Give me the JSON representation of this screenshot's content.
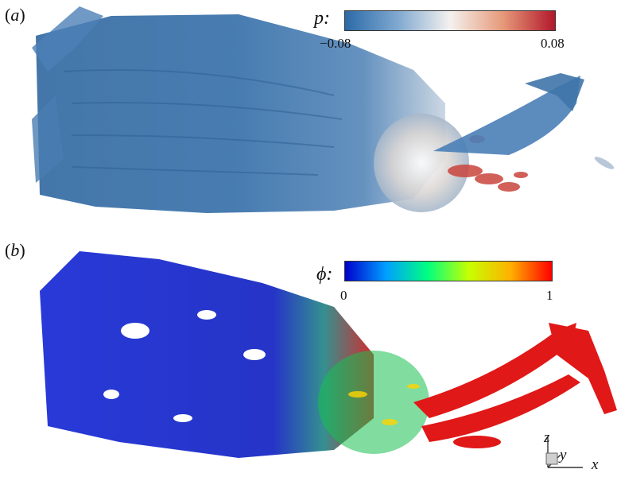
{
  "panels": [
    {
      "id": "a",
      "label": "a",
      "colorbar": {
        "variable": "p",
        "min_label": "−0.08",
        "max_label": "0.08",
        "colors": [
          "#2c6aa8",
          "#7fa8d0",
          "#f4f1ef",
          "#e69a7a",
          "#b2182b"
        ]
      }
    },
    {
      "id": "b",
      "label": "b",
      "colorbar": {
        "variable": "ϕ",
        "min_label": "0",
        "max_label": "1",
        "colors": [
          "#0000cc",
          "#00a0ff",
          "#00ff80",
          "#c8ff00",
          "#ffb000",
          "#ff0000"
        ]
      }
    }
  ],
  "axes_triad": {
    "z": "z",
    "y": "y",
    "x": "x"
  }
}
